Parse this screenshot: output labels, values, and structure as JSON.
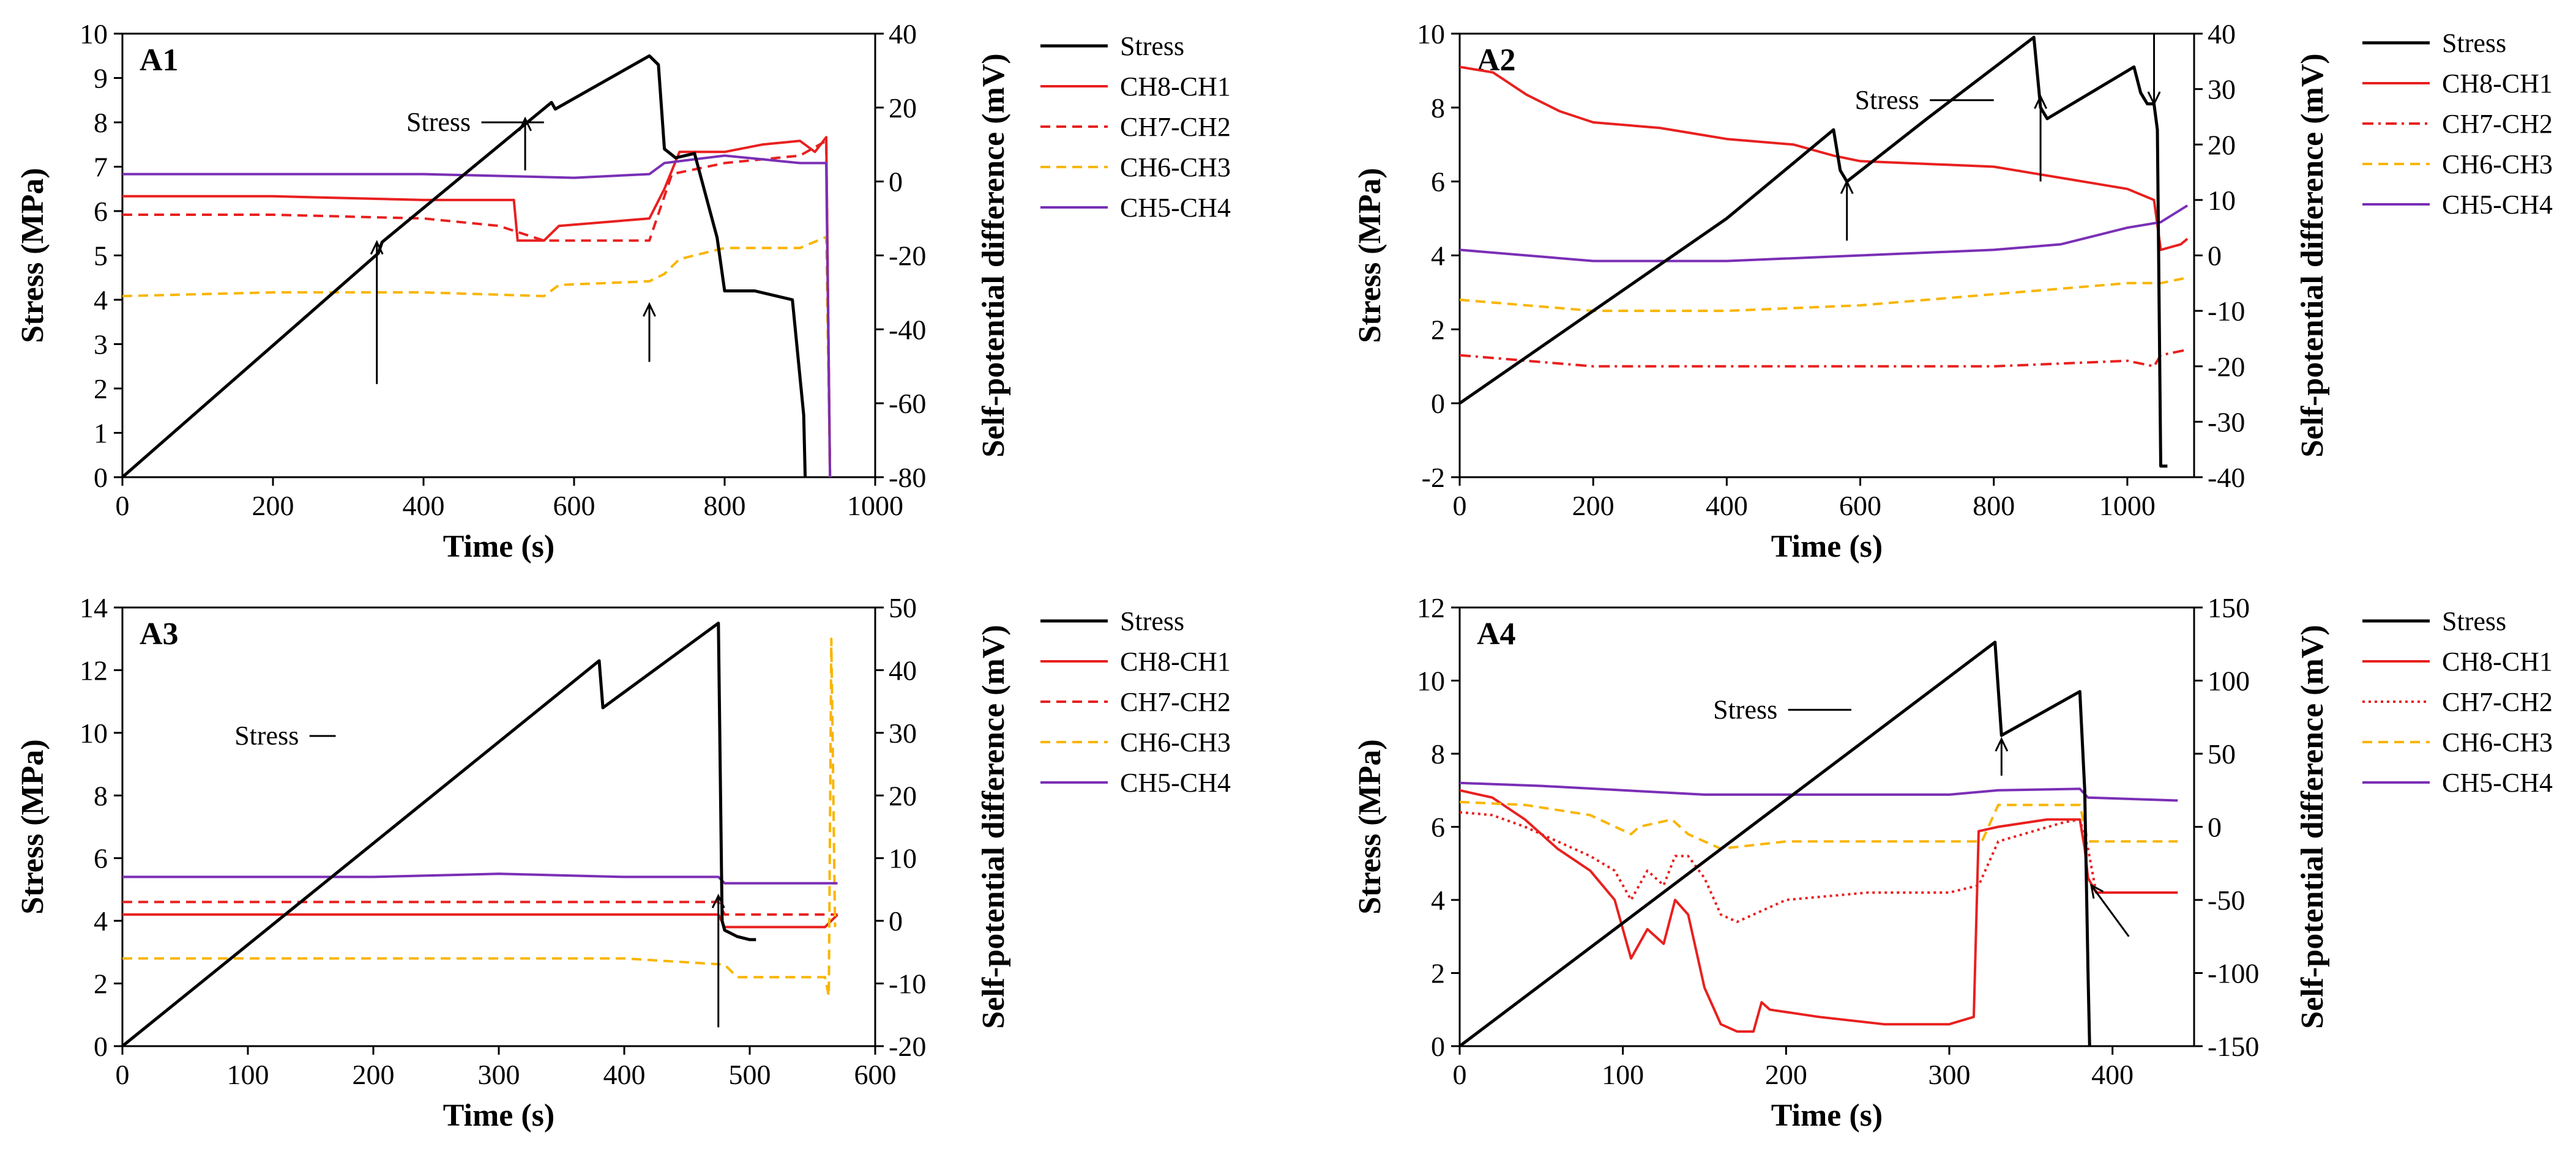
{
  "colors": {
    "Stress": "#000000",
    "CH8-CH1": "#e8201f",
    "CH7-CH2": "#e8201f",
    "CH6-CH3": "#f9b500",
    "CH5-CH4": "#7a2fb5"
  },
  "chart_data": [
    {
      "type": "line",
      "panel": "A1",
      "xlabel": "Time (s)",
      "ylabel": "Stress (MPa)",
      "y2label": "Self-potential difference (mV)",
      "xlim": [
        0,
        1000
      ],
      "ylim": [
        0,
        10
      ],
      "y2lim": [
        -80,
        40
      ],
      "xticks": [
        0,
        200,
        400,
        600,
        800,
        1000
      ],
      "yticks": [
        0,
        1,
        2,
        3,
        4,
        5,
        6,
        7,
        8,
        9,
        10
      ],
      "y2ticks": [
        -80,
        -60,
        -40,
        -20,
        0,
        20,
        40
      ],
      "legend": [
        "Stress",
        "CH8-CH1",
        "CH7-CH2",
        "CH6-CH3",
        "CH5-CH4"
      ],
      "annotation": "Stress",
      "series": [
        {
          "name": "Stress",
          "axis": "left",
          "style": "solid",
          "x": [
            0,
            340,
            345,
            570,
            575,
            700,
            712,
            720,
            735,
            760,
            790,
            800,
            840,
            890,
            905,
            907
          ],
          "y": [
            0,
            5.05,
            5.3,
            8.45,
            8.3,
            9.5,
            9.3,
            7.4,
            7.2,
            7.3,
            5.4,
            4.2,
            4.2,
            4.0,
            1.4,
            0
          ]
        },
        {
          "name": "CH8-CH1",
          "axis": "right",
          "style": "solid",
          "x": [
            0,
            200,
            400,
            520,
            525,
            560,
            580,
            700,
            720,
            740,
            800,
            850,
            900,
            920,
            935,
            940
          ],
          "y": [
            -4,
            -4,
            -5,
            -5,
            -16,
            -16,
            -12,
            -10,
            -2,
            8,
            8,
            10,
            11,
            8,
            12,
            -80
          ]
        },
        {
          "name": "CH7-CH2",
          "axis": "right",
          "style": "dash",
          "x": [
            0,
            200,
            400,
            500,
            560,
            700,
            730,
            800,
            900,
            935,
            940
          ],
          "y": [
            -9,
            -9,
            -10,
            -12,
            -16,
            -16,
            2,
            5,
            7,
            11,
            -80
          ]
        },
        {
          "name": "CH6-CH3",
          "axis": "right",
          "style": "dash",
          "x": [
            0,
            200,
            400,
            560,
            580,
            700,
            720,
            740,
            800,
            850,
            900,
            935,
            940
          ],
          "y": [
            -31,
            -30,
            -30,
            -31,
            -28,
            -27,
            -25,
            -21,
            -18,
            -18,
            -18,
            -15,
            -80
          ]
        },
        {
          "name": "CH5-CH4",
          "axis": "right",
          "style": "solid",
          "x": [
            0,
            200,
            400,
            600,
            700,
            720,
            760,
            800,
            850,
            900,
            935,
            940
          ],
          "y": [
            2,
            2,
            2,
            1,
            2,
            5,
            6,
            7,
            6,
            5,
            5,
            -80
          ]
        }
      ]
    },
    {
      "type": "line",
      "panel": "A2",
      "xlabel": "Time (s)",
      "ylabel": "Stress (MPa)",
      "y2label": "Self-potential difference (mV)",
      "xlim": [
        0,
        1100
      ],
      "ylim": [
        -2,
        10
      ],
      "y2lim": [
        -40,
        40
      ],
      "xticks": [
        0,
        200,
        400,
        600,
        800,
        1000
      ],
      "yticks": [
        -2,
        0,
        2,
        4,
        6,
        8,
        10
      ],
      "y2ticks": [
        -40,
        -30,
        -20,
        -10,
        0,
        10,
        20,
        30,
        40
      ],
      "legend": [
        "Stress",
        "CH8-CH1",
        "CH7-CH2",
        "CH6-CH3",
        "CH5-CH4"
      ],
      "annotation": "Stress",
      "series": [
        {
          "name": "Stress",
          "axis": "left",
          "style": "solid",
          "x": [
            0,
            200,
            400,
            560,
            570,
            580,
            700,
            860,
            870,
            880,
            1010,
            1020,
            1030,
            1040,
            1045,
            1050,
            1060
          ],
          "y": [
            0,
            2.5,
            5.0,
            7.4,
            6.3,
            6.0,
            7.7,
            9.9,
            8.0,
            7.7,
            9.1,
            8.4,
            8.1,
            8.1,
            7.4,
            -1.7,
            -1.7
          ]
        },
        {
          "name": "CH8-CH1",
          "axis": "right",
          "style": "solid",
          "x": [
            0,
            50,
            100,
            150,
            200,
            300,
            400,
            500,
            560,
            600,
            800,
            900,
            1000,
            1040,
            1050,
            1080,
            1090
          ],
          "y": [
            34,
            33,
            29,
            26,
            24,
            23,
            21,
            20,
            18,
            17,
            16,
            14,
            12,
            10,
            1,
            2,
            3
          ]
        },
        {
          "name": "CH7-CH2",
          "axis": "right",
          "style": "dashdot",
          "x": [
            0,
            100,
            200,
            400,
            600,
            800,
            1000,
            1040,
            1050,
            1090
          ],
          "y": [
            -18,
            -19,
            -20,
            -20,
            -20,
            -20,
            -19,
            -20,
            -18,
            -17
          ]
        },
        {
          "name": "CH6-CH3",
          "axis": "right",
          "style": "dash",
          "x": [
            0,
            100,
            200,
            400,
            600,
            800,
            900,
            1000,
            1050,
            1090
          ],
          "y": [
            -8,
            -9,
            -10,
            -10,
            -9,
            -7,
            -6,
            -5,
            -5,
            -4
          ]
        },
        {
          "name": "CH5-CH4",
          "axis": "right",
          "style": "solid",
          "x": [
            0,
            100,
            200,
            400,
            600,
            800,
            900,
            1000,
            1050,
            1090
          ],
          "y": [
            1,
            0,
            -1,
            -1,
            0,
            1,
            2,
            5,
            6,
            9
          ]
        }
      ]
    },
    {
      "type": "line",
      "panel": "A3",
      "xlabel": "Time (s)",
      "ylabel": "Stress (MPa)",
      "y2label": "Self-potential difference (mV)",
      "xlim": [
        0,
        600
      ],
      "ylim": [
        0,
        14
      ],
      "y2lim": [
        -20,
        50
      ],
      "xticks": [
        0,
        100,
        200,
        300,
        400,
        500,
        600
      ],
      "yticks": [
        0,
        2,
        4,
        6,
        8,
        10,
        12,
        14
      ],
      "y2ticks": [
        -20,
        -10,
        0,
        10,
        20,
        30,
        40,
        50
      ],
      "legend": [
        "Stress",
        "CH8-CH1",
        "CH7-CH2",
        "CH6-CH3",
        "CH5-CH4"
      ],
      "annotation": "Stress",
      "series": [
        {
          "name": "Stress",
          "axis": "left",
          "style": "solid",
          "x": [
            0,
            380,
            383,
            475,
            478,
            480,
            490,
            500,
            505
          ],
          "y": [
            0,
            12.3,
            10.8,
            13.5,
            4.0,
            3.7,
            3.5,
            3.4,
            3.4
          ]
        },
        {
          "name": "CH8-CH1",
          "axis": "right",
          "style": "solid",
          "x": [
            0,
            200,
            400,
            475,
            480,
            560,
            565,
            570
          ],
          "y": [
            1,
            1,
            1,
            1,
            -1,
            -1,
            0,
            1
          ]
        },
        {
          "name": "CH7-CH2",
          "axis": "right",
          "style": "dash",
          "x": [
            0,
            200,
            400,
            475,
            480,
            560,
            565,
            570
          ],
          "y": [
            3,
            3,
            3,
            3,
            1,
            1,
            1,
            1
          ]
        },
        {
          "name": "CH6-CH3",
          "axis": "right",
          "style": "dash",
          "x": [
            0,
            200,
            400,
            480,
            490,
            520,
            560,
            563,
            565,
            568
          ],
          "y": [
            -6,
            -6,
            -6,
            -7,
            -9,
            -9,
            -9,
            -12,
            45,
            -1
          ]
        },
        {
          "name": "CH5-CH4",
          "axis": "right",
          "style": "solid",
          "x": [
            0,
            200,
            300,
            400,
            475,
            480,
            570
          ],
          "y": [
            7,
            7,
            7.5,
            7,
            7,
            6,
            6
          ]
        }
      ]
    },
    {
      "type": "line",
      "panel": "A4",
      "xlabel": "Time (s)",
      "ylabel": "Stress (MPa)",
      "y2label": "Self-potential difference (mV)",
      "xlim": [
        0,
        450
      ],
      "ylim": [
        0,
        12
      ],
      "y2lim": [
        -150,
        150
      ],
      "xticks": [
        0,
        100,
        200,
        300,
        400
      ],
      "yticks": [
        0,
        2,
        4,
        6,
        8,
        10,
        12
      ],
      "y2ticks": [
        -150,
        -100,
        -50,
        0,
        50,
        100,
        150
      ],
      "legend": [
        "Stress",
        "CH8-CH1",
        "CH7-CH2",
        "CH6-CH3",
        "CH5-CH4"
      ],
      "annotation": "Stress",
      "series": [
        {
          "name": "Stress",
          "axis": "left",
          "style": "solid",
          "x": [
            0,
            328,
            332,
            380,
            383,
            385,
            386
          ],
          "y": [
            0,
            11.05,
            8.5,
            9.7,
            7.0,
            2.0,
            0
          ]
        },
        {
          "name": "CH8-CH1",
          "axis": "right",
          "style": "solid",
          "x": [
            0,
            20,
            40,
            60,
            80,
            95,
            105,
            115,
            125,
            132,
            140,
            150,
            160,
            170,
            180,
            185,
            190,
            220,
            260,
            300,
            315,
            318,
            330,
            360,
            380,
            383,
            385,
            390,
            440
          ],
          "y": [
            25,
            20,
            5,
            -15,
            -30,
            -50,
            -90,
            -70,
            -80,
            -50,
            -60,
            -110,
            -135,
            -140,
            -140,
            -120,
            -125,
            -130,
            -135,
            -135,
            -130,
            -3,
            0,
            5,
            5,
            -15,
            -35,
            -45,
            -45
          ]
        },
        {
          "name": "CH7-CH2",
          "axis": "right",
          "style": "dot",
          "x": [
            0,
            20,
            40,
            60,
            80,
            95,
            105,
            115,
            125,
            132,
            140,
            150,
            160,
            170,
            180,
            200,
            250,
            300,
            318,
            330,
            370,
            380,
            385,
            390,
            440
          ],
          "y": [
            10,
            8,
            0,
            -10,
            -20,
            -30,
            -50,
            -30,
            -40,
            -20,
            -20,
            -35,
            -60,
            -65,
            -60,
            -50,
            -45,
            -45,
            -40,
            -10,
            3,
            5,
            -15,
            -45,
            -45
          ]
        },
        {
          "name": "CH6-CH3",
          "axis": "right",
          "style": "dash",
          "x": [
            0,
            40,
            80,
            105,
            110,
            130,
            140,
            150,
            160,
            200,
            300,
            320,
            330,
            380,
            385,
            440
          ],
          "y": [
            17,
            15,
            8,
            -5,
            0,
            5,
            -5,
            -10,
            -15,
            -10,
            -10,
            -10,
            15,
            15,
            -10,
            -10
          ]
        },
        {
          "name": "CH5-CH4",
          "axis": "right",
          "style": "solid",
          "x": [
            0,
            50,
            100,
            150,
            200,
            300,
            330,
            380,
            385,
            440
          ],
          "y": [
            30,
            28,
            25,
            22,
            22,
            22,
            25,
            26,
            20,
            18
          ]
        }
      ]
    }
  ]
}
